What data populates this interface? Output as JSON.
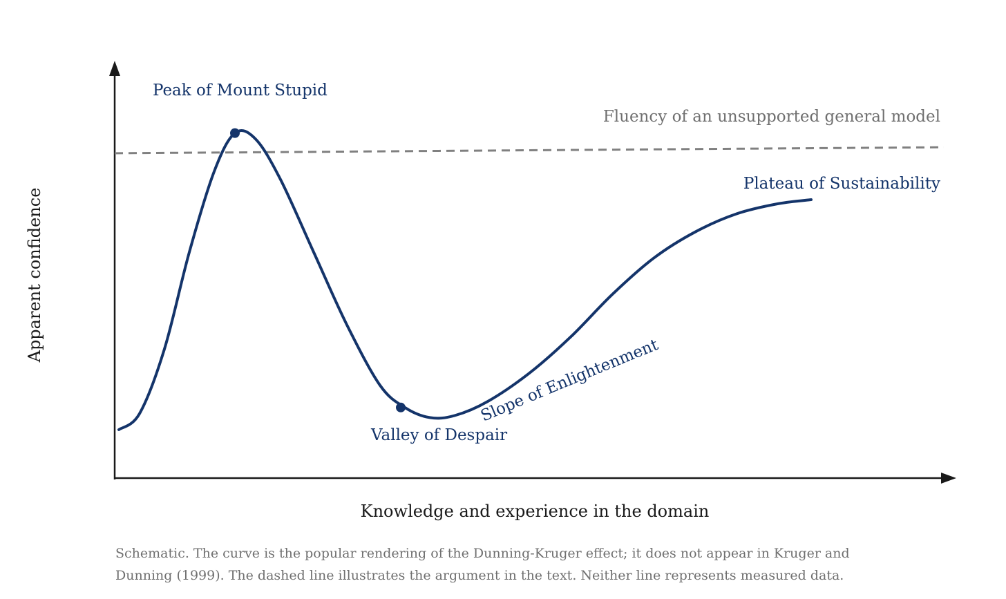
{
  "chart_data": {
    "type": "line",
    "xlabel": "Knowledge and experience in the domain",
    "ylabel": "Apparent confidence",
    "xlim": [
      0,
      100
    ],
    "ylim": [
      0,
      100
    ],
    "grid": false,
    "series": [
      {
        "color": "#14346a",
        "points": [
          [
            0.5,
            12
          ],
          [
            3,
            16
          ],
          [
            6,
            32
          ],
          [
            9,
            56
          ],
          [
            12,
            76
          ],
          [
            14.5,
            85.5
          ],
          [
            17,
            84
          ],
          [
            20,
            74
          ],
          [
            24,
            56
          ],
          [
            28,
            38
          ],
          [
            32,
            23
          ],
          [
            35,
            17.5
          ],
          [
            38,
            15
          ],
          [
            41,
            15.5
          ],
          [
            45,
            19
          ],
          [
            50,
            26
          ],
          [
            55,
            35
          ],
          [
            60,
            45.5
          ],
          [
            65,
            54.5
          ],
          [
            70,
            61
          ],
          [
            75,
            65.5
          ],
          [
            80,
            68
          ],
          [
            84,
            69
          ]
        ]
      },
      {
        "color": "#808080",
        "style": "dashed",
        "points": [
          [
            0,
            80.5
          ],
          [
            100,
            82
          ]
        ]
      }
    ],
    "annotations": [
      {
        "text": "Peak of Mount Stupid",
        "x": 14.5,
        "y": 85.5
      },
      {
        "text": "Valley of Despair",
        "x": 34.5,
        "y": 17.5
      },
      {
        "text": "Slope of Enlightenment",
        "x": 54,
        "y": 32
      },
      {
        "text": "Plateau of Sustainability",
        "x": 84,
        "y": 69
      },
      {
        "text": "Fluency of an unsupported general model",
        "x": 100,
        "y": 82
      }
    ]
  },
  "caption": {
    "line1": "Schematic. The curve is the popular rendering of the Dunning-Kruger effect; it does not appear in Kruger and",
    "line2": "Dunning (1999). The dashed line illustrates the argument in the text. Neither line represents measured data."
  },
  "colors": {
    "curve": "#14346a",
    "dashed": "#808080",
    "axis": "#1a1a1a",
    "caption": "#6f6f6f"
  }
}
